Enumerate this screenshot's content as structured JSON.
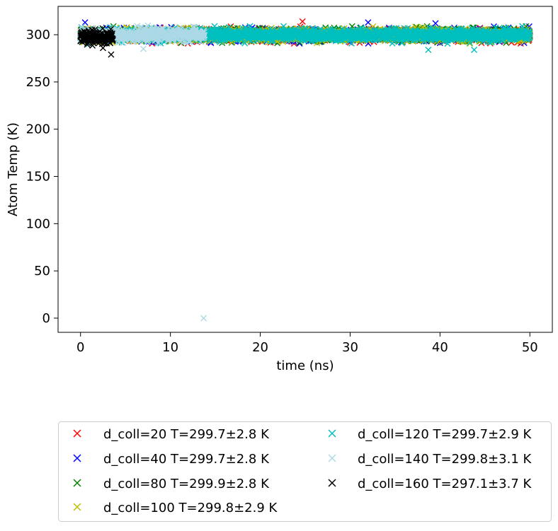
{
  "chart_data": {
    "type": "scatter",
    "title": "",
    "xlabel": "time (ns)",
    "ylabel": "Atom Temp (K)",
    "xlim": [
      -2.5,
      52.5
    ],
    "ylim": [
      -15,
      330
    ],
    "xticks": [
      0,
      10,
      20,
      30,
      40,
      50
    ],
    "yticks": [
      0,
      50,
      100,
      150,
      200,
      250,
      300
    ],
    "grid": false,
    "legend_position": "below",
    "marker": "x",
    "series": [
      {
        "name": "d_coll=20 T=299.7±2.8 K",
        "color": "#ff0000",
        "t_max": 50,
        "mean": 299.7,
        "std": 2.8,
        "outliers": [
          [
            24.7,
            314
          ]
        ]
      },
      {
        "name": "d_coll=40 T=299.7±2.8 K",
        "color": "#0000ff",
        "t_max": 50,
        "mean": 299.7,
        "std": 2.8,
        "outliers": [
          [
            0.5,
            313
          ],
          [
            32,
            313
          ],
          [
            39.5,
            312
          ]
        ]
      },
      {
        "name": "d_coll=80 T=299.9±2.8 K",
        "color": "#008000",
        "t_max": 50,
        "mean": 299.9,
        "std": 2.8,
        "outliers": []
      },
      {
        "name": "d_coll=100 T=299.8±2.9 K",
        "color": "#bfbf00",
        "t_max": 50,
        "mean": 299.8,
        "std": 2.9,
        "outliers": []
      },
      {
        "name": "d_coll=120 T=299.7±2.9 K",
        "color": "#00bfbf",
        "t_max": 50,
        "mean": 299.7,
        "std": 2.9,
        "outliers": [
          [
            38.7,
            284
          ],
          [
            43.8,
            284
          ]
        ]
      },
      {
        "name": "d_coll=140 T=299.8±3.1 K",
        "color": "#add8e6",
        "t_max": 13.8,
        "mean": 299.8,
        "std": 3.1,
        "outliers": [
          [
            13.7,
            0
          ],
          [
            7,
            285
          ]
        ]
      },
      {
        "name": "d_coll=160 T=297.1±3.7 K",
        "color": "#000000",
        "t_max": 3.6,
        "mean": 297.1,
        "std": 3.7,
        "outliers": [
          [
            3.4,
            279
          ]
        ]
      }
    ]
  }
}
